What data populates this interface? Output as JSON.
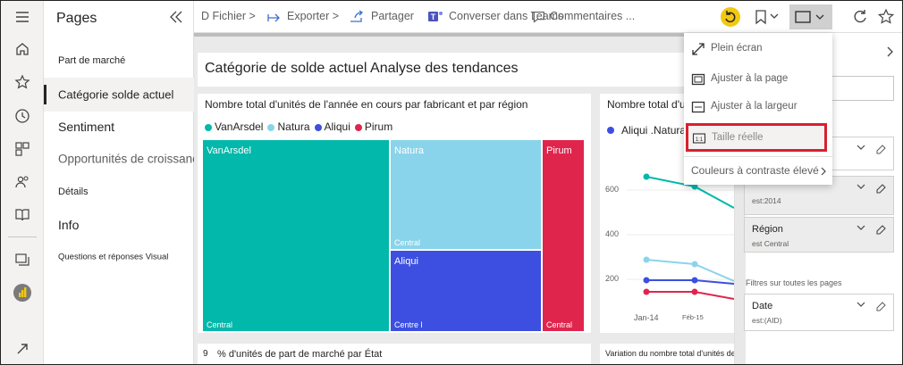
{
  "pages_pane": {
    "title": "Pages",
    "items": [
      {
        "label": "Part de marché"
      },
      {
        "label": "Catégorie solde actuel"
      },
      {
        "label": "Sentiment"
      },
      {
        "label": "Opportunités de croissance"
      },
      {
        "label": "Détails"
      },
      {
        "label": "Info"
      },
      {
        "label": "Questions et réponses Visual"
      }
    ]
  },
  "topbar": {
    "file": "D Fichier >",
    "export": "Exporter >",
    "share": "Partager",
    "teams": "Converser dans Teams",
    "comments": "Commentaires ..."
  },
  "report": {
    "title": "Catégorie de solde actuel Analyse des tendances",
    "treemap": {
      "title": "Nombre total d'unités de l'année en cours par fabricant et par région",
      "legend": [
        {
          "name": "VanArsdel",
          "color": "#01b8aa"
        },
        {
          "name": "Natura",
          "color": "#8ad4eb"
        },
        {
          "name": "Aliqui",
          "color": "#3c4fe0"
        },
        {
          "name": "Pirum",
          "color": "#e0254d"
        }
      ],
      "tiles": [
        {
          "name": "VanArsdel",
          "sub": "Central",
          "color": "#01b8aa"
        },
        {
          "name": "Natura",
          "sub": "Central",
          "color": "#8ad4eb"
        },
        {
          "name": "Aliqui",
          "sub": "Centre l",
          "color": "#3c4fe0"
        },
        {
          "name": "Pirum",
          "sub": "Central",
          "color": "#e0254d"
        }
      ]
    },
    "line": {
      "title": "Nombre total d'unités par",
      "legend": "Aliqui .Natura",
      "yticks": [
        "600",
        "400",
        "200"
      ],
      "xticks": [
        "Jan-14",
        "Féb-15"
      ]
    },
    "bottom_left_title": "% d'unités de part de marché par État",
    "bottom_left_prefix": "9",
    "bottom_right_title": "Variation du nombre total d'unités de l'année en cours"
  },
  "menu": {
    "items": [
      {
        "label": "Plein écran",
        "icon": "fullscreen-icon"
      },
      {
        "label": "Ajuster à la page",
        "icon": "fit-page-icon"
      },
      {
        "label": "Ajuster à la largeur",
        "icon": "fit-width-icon"
      },
      {
        "label": "Taille réelle",
        "icon": "actual-size-icon"
      },
      {
        "label": "Couleurs à contraste élevé",
        "icon": "chevron-right-icon"
      }
    ]
  },
  "filters": {
    "card1_sub": "est:2014",
    "card2_title": "Région",
    "card2_sub": "est Central",
    "section": "Filtres sur toutes les pages",
    "card3_title": "Date",
    "card3_sub": "est:(AID)"
  },
  "colors": {
    "highlight": "#d6202f",
    "accent_yellow": "#f2c811"
  }
}
